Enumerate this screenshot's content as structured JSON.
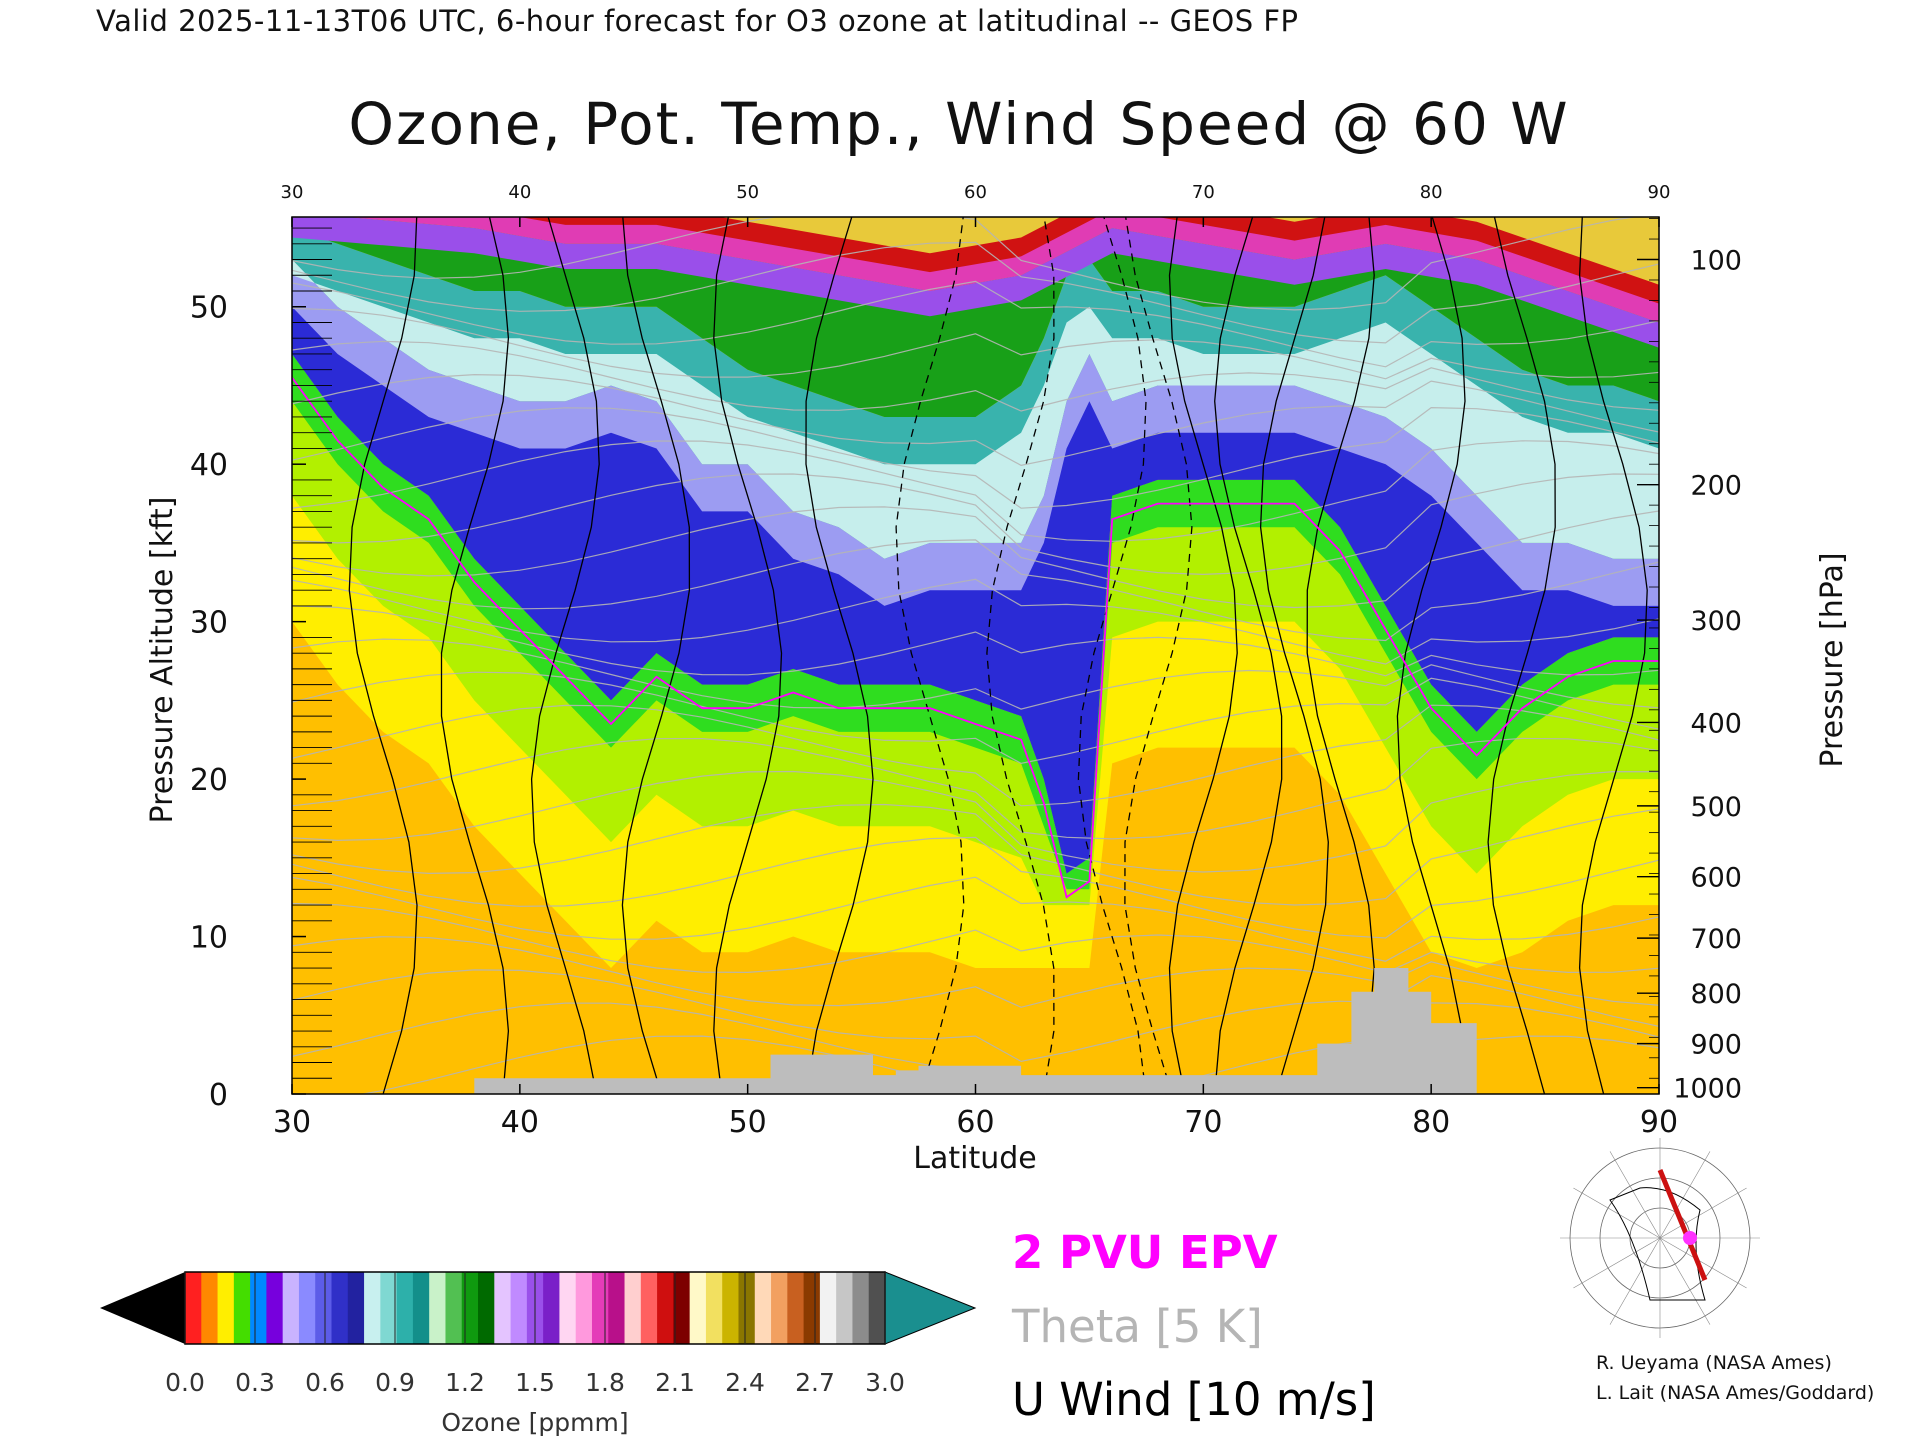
{
  "header": {
    "valid_line": "Valid 2025-11-13T06 UTC, 6-hour forecast for O3 ozone at latitudinal -- GEOS FP"
  },
  "chart_data": {
    "type": "heatmap",
    "title": "Ozone, Pot. Temp., Wind Speed @ 60 W",
    "xlabel": "Latitude",
    "ylabel": "Pressure Altitude [kft]",
    "ylabel_right": "Pressure [hPa]",
    "xlim": [
      30,
      90
    ],
    "ylim": [
      0,
      55.7
    ],
    "x_ticks": [
      "30",
      "40",
      "50",
      "60",
      "70",
      "80",
      "90"
    ],
    "y_ticks": [
      {
        "label": "0",
        "value": 0
      },
      {
        "label": "10",
        "value": 10
      },
      {
        "label": "20",
        "value": 20
      },
      {
        "label": "30",
        "value": 30
      },
      {
        "label": "40",
        "value": 40
      },
      {
        "label": "50",
        "value": 50
      }
    ],
    "pressure_ticks": [
      {
        "label": "100",
        "value": 53.0
      },
      {
        "label": "200",
        "value": 38.7
      },
      {
        "label": "300",
        "value": 30.1
      },
      {
        "label": "400",
        "value": 23.6
      },
      {
        "label": "500",
        "value": 18.3
      },
      {
        "label": "600",
        "value": 13.8
      },
      {
        "label": "700",
        "value": 9.9
      },
      {
        "label": "800",
        "value": 6.4
      },
      {
        "label": "900",
        "value": 3.2
      },
      {
        "label": "1000",
        "value": 0.4
      }
    ],
    "ozone_boundaries": [
      {
        "name": "0.3 ppmm",
        "color": "#3a3ad8",
        "x": [
          30,
          32,
          34,
          36,
          38,
          40,
          42,
          44,
          46,
          48,
          50,
          52,
          54,
          56,
          58,
          60,
          62,
          63,
          64,
          65,
          66,
          68,
          70,
          72,
          74,
          76,
          78,
          80,
          82,
          84,
          86,
          88,
          90
        ],
        "y": [
          47,
          43,
          40,
          38,
          34,
          31,
          28,
          25,
          28,
          26,
          26,
          27,
          26,
          26,
          26,
          25,
          24,
          20,
          14,
          15,
          38,
          39,
          39,
          39,
          39,
          36,
          31,
          26,
          23,
          26,
          28,
          29,
          29
        ]
      },
      {
        "name": "0.6 ppmm",
        "color": "#2db9b0",
        "x": [
          30,
          32,
          34,
          36,
          38,
          40,
          42,
          44,
          46,
          48,
          50,
          52,
          54,
          56,
          58,
          60,
          62,
          63,
          64,
          65,
          66,
          68,
          70,
          72,
          74,
          76,
          78,
          80,
          82,
          84,
          86,
          88,
          90
        ],
        "y": [
          53,
          50,
          48,
          46,
          45,
          44,
          44,
          45,
          44,
          40,
          40,
          37,
          36,
          34,
          35,
          35,
          35,
          38,
          44,
          47,
          44,
          45,
          45,
          45,
          45,
          44,
          43,
          41,
          38,
          35,
          35,
          34,
          34
        ]
      },
      {
        "name": "0.9 ppmm",
        "color": "#119a11",
        "x": [
          30,
          32,
          34,
          36,
          38,
          40,
          42,
          44,
          46,
          48,
          50,
          52,
          54,
          56,
          58,
          60,
          62,
          63,
          64,
          65,
          66,
          68,
          70,
          72,
          74,
          76,
          78,
          80,
          82,
          84,
          86,
          88,
          90
        ],
        "y": [
          55,
          54,
          53,
          52,
          51,
          51,
          50,
          50,
          50,
          48,
          46,
          45,
          44,
          43,
          43,
          43,
          45,
          48,
          52,
          53,
          51,
          51,
          50,
          50,
          50,
          51,
          52,
          50,
          48,
          46,
          45,
          45,
          44
        ]
      },
      {
        "name": "1.5 ppmm",
        "color": "#c22fc2",
        "x": [
          30,
          34,
          38,
          42,
          46,
          50,
          54,
          58,
          62,
          66,
          70,
          74,
          78,
          82,
          86,
          90
        ],
        "y": [
          56,
          55.5,
          55,
          54,
          54,
          53,
          52,
          51,
          52,
          55,
          54,
          53,
          54,
          53,
          51,
          49
        ]
      }
    ],
    "terrain": {
      "x": [
        30,
        38,
        38,
        50,
        50,
        51,
        51,
        55.5,
        55.5,
        56.5,
        56.5,
        57.5,
        57.5,
        62,
        62,
        75,
        75,
        76.5,
        76.5,
        77.5,
        77.5,
        79,
        79,
        80,
        80,
        82,
        82,
        90
      ],
      "y": [
        0,
        0,
        1,
        1,
        1,
        1,
        2.5,
        2.5,
        1.2,
        1.2,
        1.5,
        1.5,
        1.8,
        1.8,
        1.2,
        1.2,
        3.2,
        3.2,
        6.5,
        6.5,
        8,
        8,
        6.5,
        6.5,
        4.5,
        4.5,
        0,
        0
      ]
    },
    "colorbar": {
      "label": "Ozone [ppmm]",
      "ticks": [
        "0.0",
        "0.3",
        "0.6",
        "0.9",
        "1.2",
        "1.5",
        "1.8",
        "2.1",
        "2.4",
        "2.7",
        "3.0"
      ],
      "range": [
        0.0,
        3.0
      ],
      "extend": "both",
      "colors": [
        "#ff2020",
        "#ff8800",
        "#ffee00",
        "#44dd00",
        "#0088ff",
        "#7700dd",
        "#c9b3ff",
        "#8a8aff",
        "#5c5ce8",
        "#3030c8",
        "#2222a0",
        "#c8f0ef",
        "#7fd8d2",
        "#2db0aa",
        "#138f8a",
        "#c9f2c9",
        "#52c052",
        "#0f9a0f",
        "#006a00",
        "#e4c4ff",
        "#c08aff",
        "#9a50ea",
        "#7a20c8",
        "#ffd6f2",
        "#ff99dd",
        "#e43cb8",
        "#b8108a",
        "#ffcfcf",
        "#ff6060",
        "#cf0f0f",
        "#7d0000",
        "#fff9c8",
        "#f2e060",
        "#cbb400",
        "#8a7600",
        "#ffd9b8",
        "#f2a060",
        "#c86020",
        "#8a3a00",
        "#f2f2f2",
        "#c6c6c6",
        "#8c8c8c",
        "#505050"
      ],
      "under_color": "#000000",
      "over_color": "#1a8f8f"
    }
  },
  "legend": {
    "epv": "2 PVU EPV",
    "epv_color": "#ff00ff",
    "theta": "Theta [5 K]",
    "theta_color": "#b5b5b5",
    "uwind": "U Wind [10 m/s]",
    "uwind_color": "#000000"
  },
  "credits": {
    "line1": "R. Ueyama (NASA Ames)",
    "line2": "L. Lait (NASA Ames/Goddard)"
  },
  "inset_map": {
    "marker_color": "#ff33ff",
    "track_color": "#cc1111"
  }
}
